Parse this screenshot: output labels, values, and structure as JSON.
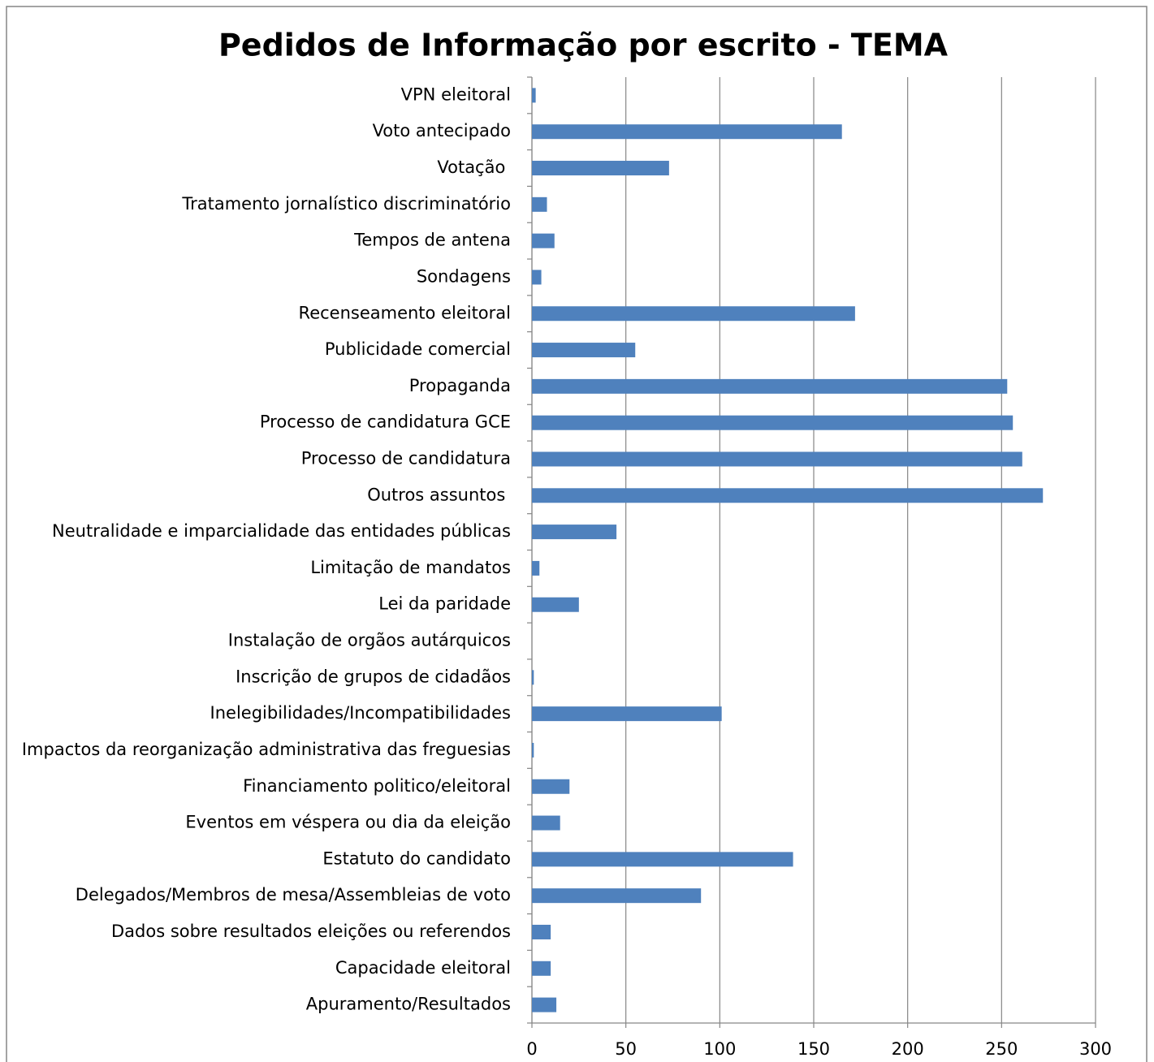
{
  "chart_data": {
    "type": "bar",
    "orientation": "horizontal",
    "title": "Pedidos de Informação por escrito - TEMA",
    "categories": [
      "VPN eleitoral",
      "Voto antecipado",
      "Votação ",
      "Tratamento jornalístico discriminatório",
      "Tempos de antena",
      "Sondagens",
      "Recenseamento eleitoral",
      "Publicidade comercial",
      "Propaganda",
      "Processo de candidatura GCE",
      "Processo de candidatura",
      "Outros assuntos ",
      "Neutralidade e imparcialidade das entidades públicas",
      "Limitação de mandatos",
      "Lei da paridade",
      "Instalação de orgãos autárquicos",
      "Inscrição de grupos de cidadãos",
      "Inelegibilidades/Incompatibilidades",
      "Impactos da reorganização administrativa das freguesias",
      "Financiamento politico/eleitoral",
      "Eventos em véspera ou dia da eleição",
      "Estatuto do candidato",
      "Delegados/Membros de mesa/Assembleias de voto",
      "Dados sobre resultados eleições ou referendos",
      "Capacidade eleitoral",
      "Apuramento/Resultados"
    ],
    "values": [
      2,
      165,
      73,
      8,
      12,
      5,
      172,
      55,
      253,
      256,
      261,
      272,
      45,
      4,
      25,
      0,
      1,
      101,
      1,
      20,
      15,
      139,
      90,
      10,
      10,
      13
    ],
    "color": "#4f81bd",
    "xlim": [
      0,
      300
    ],
    "xticks": [
      0,
      50,
      100,
      150,
      200,
      250,
      300
    ],
    "grid": true
  }
}
